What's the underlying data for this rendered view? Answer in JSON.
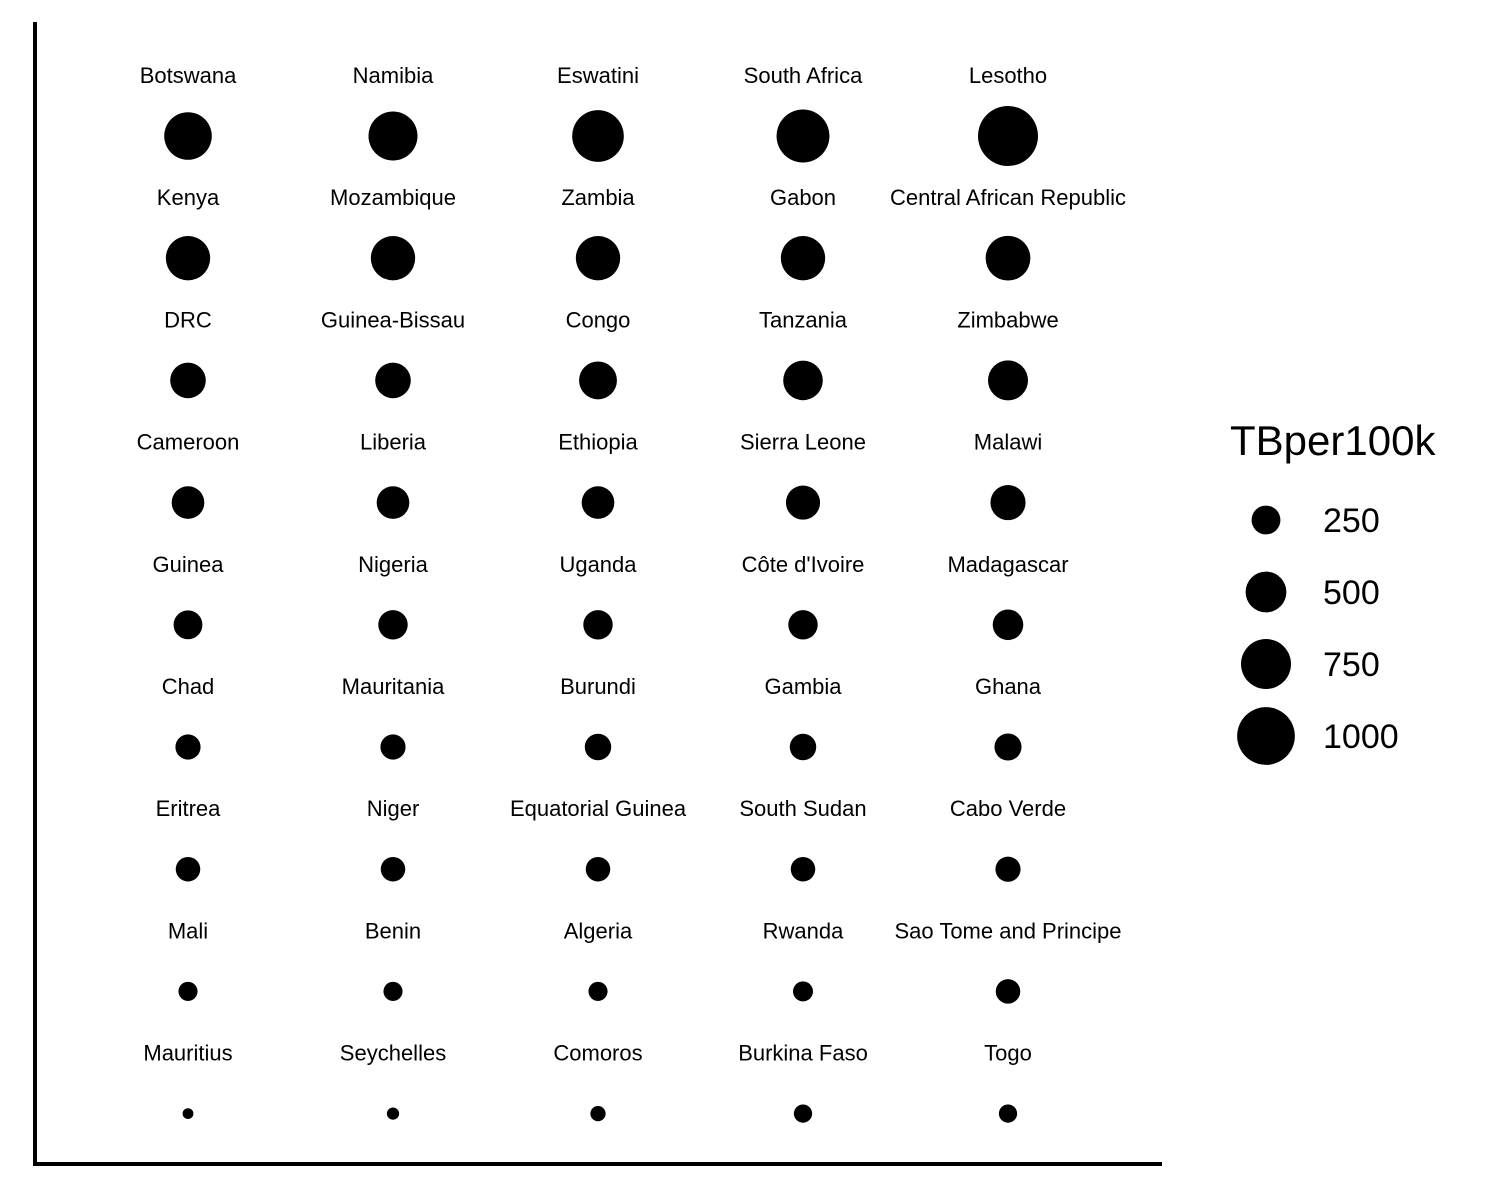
{
  "chart_data": {
    "type": "scatter",
    "size_variable": "TBper100k",
    "grid": false,
    "legend_position": "right",
    "marker_color": "#000000",
    "background_color": "#ffffff",
    "rows": [
      [
        {
          "country": "Botswana",
          "value": 680
        },
        {
          "country": "Namibia",
          "value": 720
        },
        {
          "country": "Eswatini",
          "value": 800
        },
        {
          "country": "South Africa",
          "value": 840
        },
        {
          "country": "Lesotho",
          "value": 1080
        }
      ],
      [
        {
          "country": "Kenya",
          "value": 590
        },
        {
          "country": "Mozambique",
          "value": 590
        },
        {
          "country": "Zambia",
          "value": 590
        },
        {
          "country": "Gabon",
          "value": 590
        },
        {
          "country": "Central African Republic",
          "value": 600
        }
      ],
      [
        {
          "country": "DRC",
          "value": 380
        },
        {
          "country": "Guinea-Bissau",
          "value": 380
        },
        {
          "country": "Congo",
          "value": 430
        },
        {
          "country": "Tanzania",
          "value": 470
        },
        {
          "country": "Zimbabwe",
          "value": 480
        }
      ],
      [
        {
          "country": "Cameroon",
          "value": 320
        },
        {
          "country": "Liberia",
          "value": 320
        },
        {
          "country": "Ethiopia",
          "value": 320
        },
        {
          "country": "Sierra Leone",
          "value": 350
        },
        {
          "country": "Malawi",
          "value": 370
        }
      ],
      [
        {
          "country": "Guinea",
          "value": 250
        },
        {
          "country": "Nigeria",
          "value": 260
        },
        {
          "country": "Uganda",
          "value": 260
        },
        {
          "country": "Côte d'Ivoire",
          "value": 260
        },
        {
          "country": "Madagascar",
          "value": 280
        }
      ],
      [
        {
          "country": "Chad",
          "value": 190
        },
        {
          "country": "Mauritania",
          "value": 190
        },
        {
          "country": "Burundi",
          "value": 210
        },
        {
          "country": "Gambia",
          "value": 210
        },
        {
          "country": "Ghana",
          "value": 220
        }
      ],
      [
        {
          "country": "Eritrea",
          "value": 180
        },
        {
          "country": "Niger",
          "value": 180
        },
        {
          "country": "Equatorial Guinea",
          "value": 180
        },
        {
          "country": "South Sudan",
          "value": 180
        },
        {
          "country": "Cabo Verde",
          "value": 190
        }
      ],
      [
        {
          "country": "Mali",
          "value": 110
        },
        {
          "country": "Benin",
          "value": 110
        },
        {
          "country": "Algeria",
          "value": 110
        },
        {
          "country": "Rwanda",
          "value": 120
        },
        {
          "country": "Sao Tome and Principe",
          "value": 180
        }
      ],
      [
        {
          "country": "Mauritius",
          "value": 35
        },
        {
          "country": "Seychelles",
          "value": 45
        },
        {
          "country": "Comoros",
          "value": 70
        },
        {
          "country": "Burkina Faso",
          "value": 100
        },
        {
          "country": "Togo",
          "value": 100
        }
      ]
    ],
    "legend": {
      "title": "TBper100k",
      "entries": [
        250,
        500,
        750,
        1000
      ]
    }
  }
}
